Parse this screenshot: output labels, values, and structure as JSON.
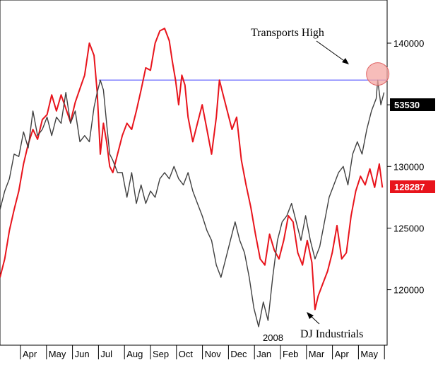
{
  "chart_data": {
    "type": "line",
    "title": "",
    "xlabel": "",
    "ylabel": "",
    "x_tick_labels": [
      "Apr",
      "May",
      "Jun",
      "Jul",
      "Aug",
      "Sep",
      "Oct",
      "Nov",
      "Dec",
      "Jan",
      "Feb",
      "Mar",
      "Apr",
      "May"
    ],
    "year_label": "2008",
    "right_axis": {
      "ticks": [
        120000,
        125000,
        130000,
        140000
      ],
      "tick_labels": [
        "120000",
        "125000",
        "130000",
        "140000"
      ]
    },
    "right_axis_unlabeled_tick": 135000,
    "ylim": [
      115500,
      143500
    ],
    "x_index_range": [
      0,
      14
    ],
    "grid": false,
    "legend": "none",
    "series": [
      {
        "color": "#e8141c",
        "label_value": "128287",
        "points": [
          [
            0.0,
            121000
          ],
          [
            0.3,
            122500
          ],
          [
            0.6,
            124800
          ],
          [
            0.9,
            126500
          ],
          [
            1.2,
            128000
          ],
          [
            1.5,
            130200
          ],
          [
            1.8,
            131800
          ],
          [
            2.1,
            133000
          ],
          [
            2.4,
            132200
          ],
          [
            2.7,
            133800
          ],
          [
            3.0,
            134200
          ],
          [
            3.3,
            135800
          ],
          [
            3.6,
            134500
          ],
          [
            3.9,
            135800
          ],
          [
            4.2,
            134700
          ],
          [
            4.5,
            133600
          ],
          [
            4.8,
            135200
          ],
          [
            5.1,
            136300
          ],
          [
            5.4,
            137400
          ],
          [
            5.7,
            140000
          ],
          [
            6.0,
            139000
          ],
          [
            6.2,
            136000
          ],
          [
            6.4,
            131000
          ],
          [
            6.6,
            133500
          ],
          [
            6.8,
            132000
          ],
          [
            7.0,
            130000
          ],
          [
            7.2,
            129500
          ],
          [
            7.5,
            131000
          ],
          [
            7.8,
            132500
          ],
          [
            8.1,
            133500
          ],
          [
            8.4,
            133000
          ],
          [
            8.7,
            134500
          ],
          [
            9.0,
            136200
          ],
          [
            9.3,
            138000
          ],
          [
            9.6,
            137800
          ],
          [
            9.9,
            140000
          ],
          [
            10.2,
            141000
          ],
          [
            10.5,
            141200
          ],
          [
            10.8,
            140200
          ],
          [
            11.0,
            138500
          ],
          [
            11.2,
            137000
          ],
          [
            11.4,
            135000
          ],
          [
            11.6,
            137400
          ],
          [
            11.8,
            136600
          ],
          [
            12.0,
            134000
          ],
          [
            12.3,
            132000
          ],
          [
            12.6,
            133500
          ],
          [
            12.9,
            135000
          ],
          [
            13.2,
            133000
          ],
          [
            13.5,
            131000
          ],
          [
            13.8,
            134000
          ],
          [
            14.0,
            137000
          ],
          [
            14.2,
            136000
          ],
          [
            14.5,
            134500
          ],
          [
            14.8,
            133000
          ],
          [
            15.1,
            134000
          ],
          [
            15.4,
            130500
          ],
          [
            15.7,
            128500
          ],
          [
            16.0,
            126700
          ],
          [
            16.3,
            124500
          ],
          [
            16.6,
            122500
          ],
          [
            16.9,
            122000
          ],
          [
            17.2,
            124500
          ],
          [
            17.5,
            123200
          ],
          [
            17.8,
            122500
          ],
          [
            18.1,
            124000
          ],
          [
            18.4,
            126000
          ],
          [
            18.7,
            125500
          ],
          [
            19.0,
            123000
          ],
          [
            19.3,
            122000
          ],
          [
            19.6,
            124000
          ],
          [
            19.9,
            122200
          ],
          [
            20.1,
            118400
          ],
          [
            20.3,
            119500
          ],
          [
            20.6,
            120500
          ],
          [
            20.9,
            121500
          ],
          [
            21.2,
            123000
          ],
          [
            21.5,
            125200
          ],
          [
            21.8,
            122500
          ],
          [
            22.1,
            123000
          ],
          [
            22.4,
            126000
          ],
          [
            22.7,
            128000
          ],
          [
            23.0,
            129200
          ],
          [
            23.3,
            128500
          ],
          [
            23.6,
            129800
          ],
          [
            23.9,
            128300
          ],
          [
            24.2,
            130200
          ],
          [
            24.4,
            128287
          ]
        ]
      },
      {
        "color": "#404040",
        "label_value": "53530",
        "points": [
          [
            0.0,
            126500
          ],
          [
            0.3,
            128000
          ],
          [
            0.6,
            129000
          ],
          [
            0.9,
            131000
          ],
          [
            1.2,
            130800
          ],
          [
            1.5,
            132800
          ],
          [
            1.8,
            131500
          ],
          [
            2.1,
            134500
          ],
          [
            2.4,
            132500
          ],
          [
            2.7,
            133000
          ],
          [
            3.0,
            134000
          ],
          [
            3.3,
            132500
          ],
          [
            3.6,
            134000
          ],
          [
            3.9,
            133500
          ],
          [
            4.2,
            136000
          ],
          [
            4.5,
            133500
          ],
          [
            4.8,
            134500
          ],
          [
            5.1,
            132000
          ],
          [
            5.4,
            132500
          ],
          [
            5.7,
            132000
          ],
          [
            6.0,
            134800
          ],
          [
            6.2,
            136000
          ],
          [
            6.4,
            137000
          ],
          [
            6.6,
            136200
          ],
          [
            6.8,
            133500
          ],
          [
            7.0,
            131000
          ],
          [
            7.2,
            130500
          ],
          [
            7.5,
            129500
          ],
          [
            7.8,
            129500
          ],
          [
            8.1,
            127500
          ],
          [
            8.4,
            129500
          ],
          [
            8.7,
            127000
          ],
          [
            9.0,
            128500
          ],
          [
            9.3,
            127000
          ],
          [
            9.6,
            128000
          ],
          [
            9.9,
            127500
          ],
          [
            10.2,
            129000
          ],
          [
            10.5,
            129500
          ],
          [
            10.8,
            129000
          ],
          [
            11.1,
            130000
          ],
          [
            11.4,
            129000
          ],
          [
            11.7,
            128500
          ],
          [
            12.0,
            129500
          ],
          [
            12.3,
            128000
          ],
          [
            12.6,
            127000
          ],
          [
            12.9,
            126000
          ],
          [
            13.2,
            124800
          ],
          [
            13.5,
            124000
          ],
          [
            13.8,
            122000
          ],
          [
            14.1,
            121000
          ],
          [
            14.4,
            122500
          ],
          [
            14.7,
            124000
          ],
          [
            15.0,
            125500
          ],
          [
            15.3,
            124000
          ],
          [
            15.6,
            123000
          ],
          [
            15.9,
            121000
          ],
          [
            16.2,
            118500
          ],
          [
            16.5,
            117000
          ],
          [
            16.8,
            119000
          ],
          [
            17.1,
            117500
          ],
          [
            17.4,
            121000
          ],
          [
            17.7,
            124000
          ],
          [
            18.0,
            125500
          ],
          [
            18.3,
            126000
          ],
          [
            18.6,
            127000
          ],
          [
            18.9,
            125500
          ],
          [
            19.2,
            124000
          ],
          [
            19.5,
            126000
          ],
          [
            19.8,
            124000
          ],
          [
            20.1,
            122500
          ],
          [
            20.4,
            123500
          ],
          [
            20.7,
            125500
          ],
          [
            21.0,
            127500
          ],
          [
            21.3,
            128500
          ],
          [
            21.6,
            129500
          ],
          [
            21.9,
            130000
          ],
          [
            22.2,
            128500
          ],
          [
            22.5,
            131000
          ],
          [
            22.8,
            132000
          ],
          [
            23.1,
            131000
          ],
          [
            23.4,
            133000
          ],
          [
            23.7,
            134500
          ],
          [
            24.0,
            135500
          ],
          [
            24.1,
            137000
          ],
          [
            24.3,
            135000
          ],
          [
            24.5,
            136000
          ]
        ]
      }
    ],
    "reference_line": {
      "value": 137000,
      "color": "#7f7fff"
    },
    "highlight": {
      "x": 24.1,
      "y": 137500,
      "fill": "#f4a7a3",
      "stroke": "#e06565"
    },
    "annotations": [
      {
        "text": "Transports High"
      },
      {
        "text": "DJ Industrials"
      }
    ]
  }
}
